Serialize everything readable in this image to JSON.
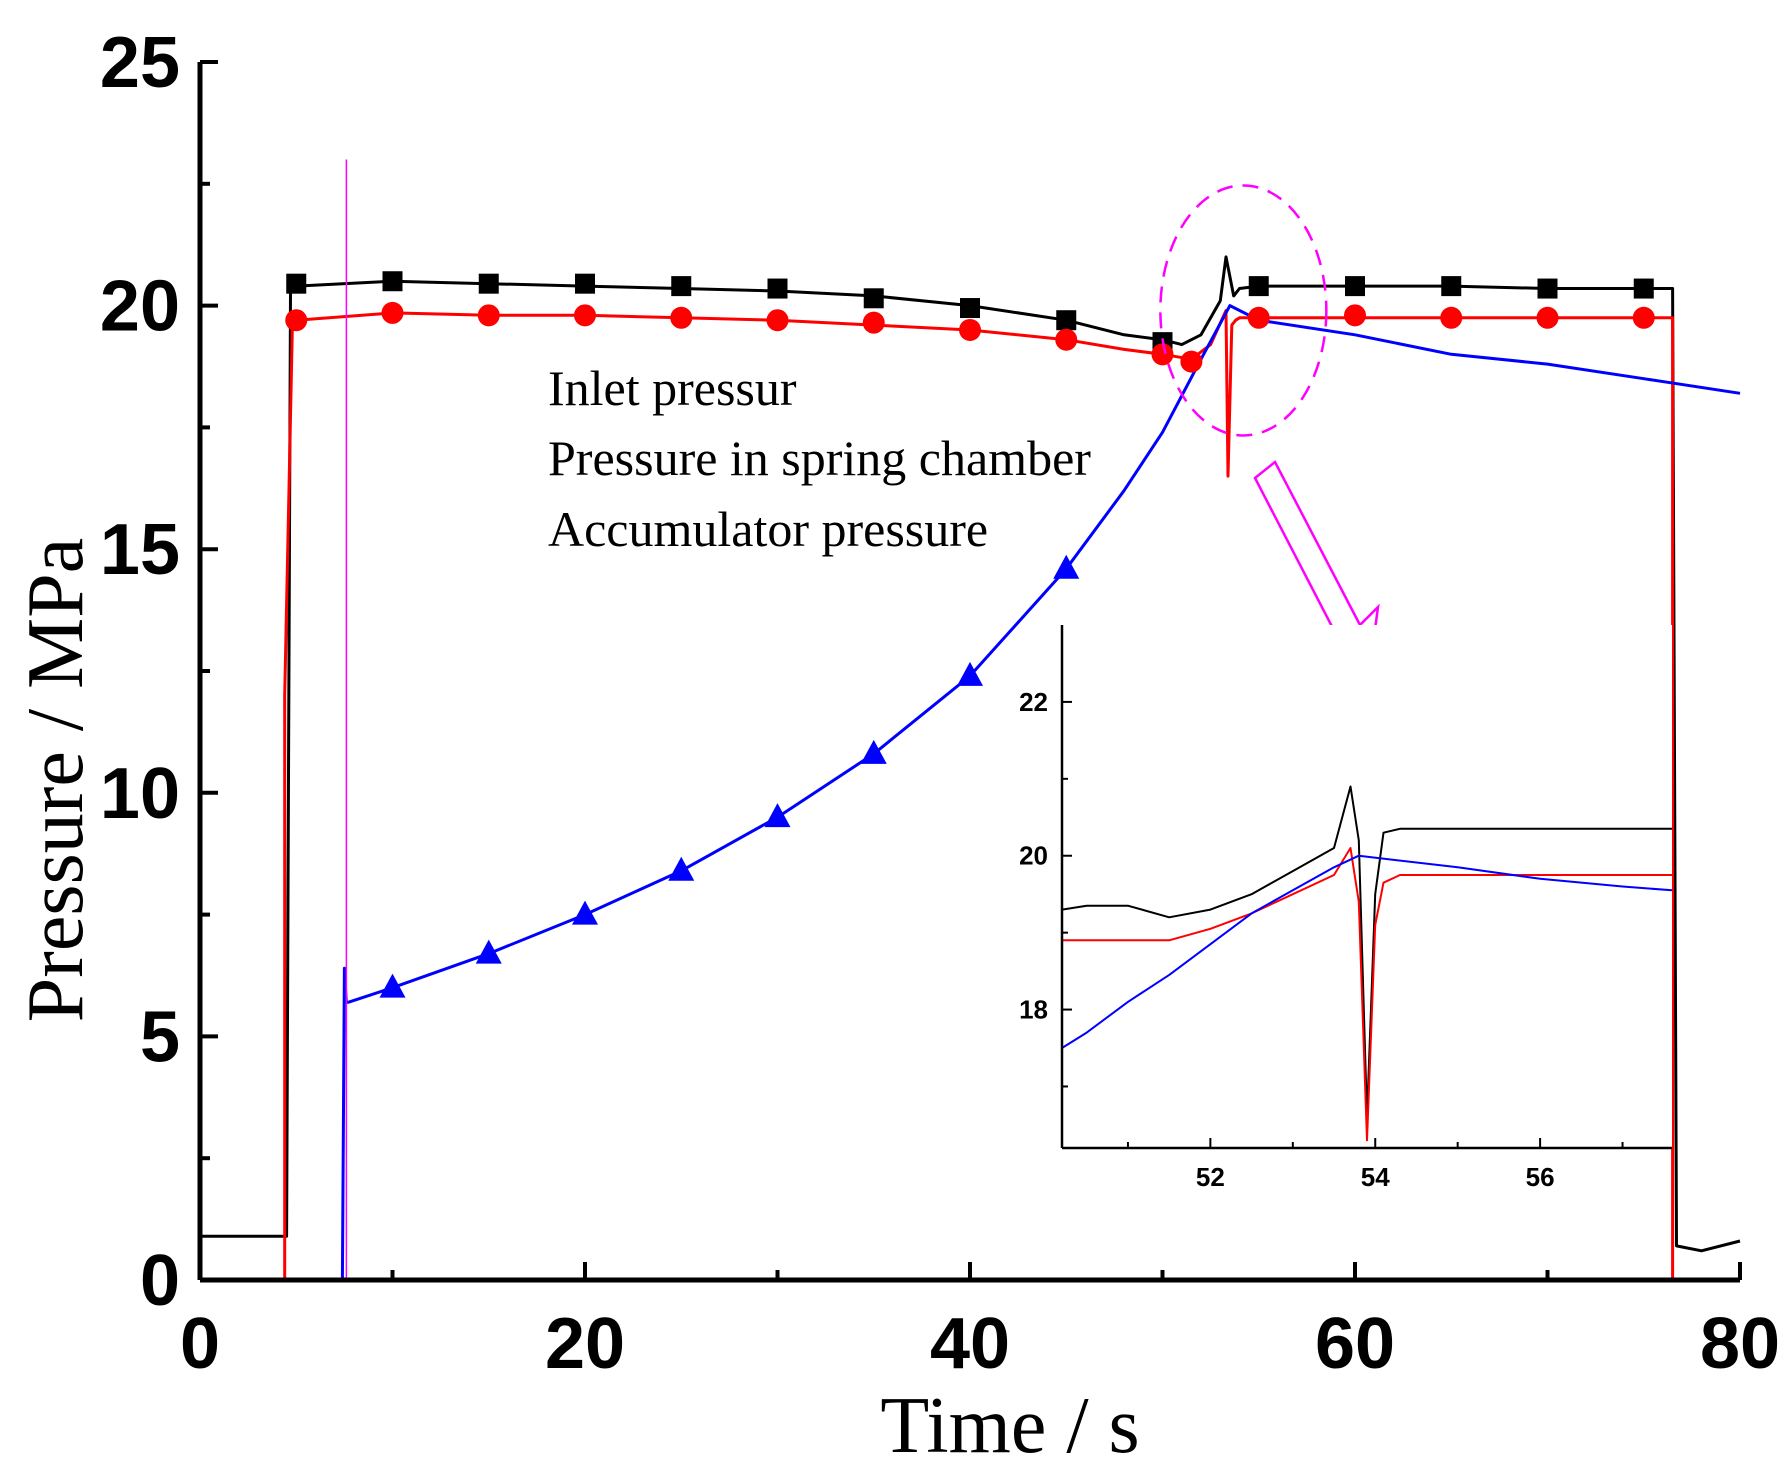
{
  "chart_data": [
    {
      "type": "line",
      "id": "main",
      "title": "",
      "xlabel": "Time / s",
      "ylabel": "Pressure  / MPa",
      "xlim": [
        0,
        80
      ],
      "ylim": [
        0,
        25
      ],
      "x_ticks": [
        0,
        20,
        40,
        60,
        80
      ],
      "x_tick_labels": [
        "0",
        "20",
        "40",
        "60",
        "80"
      ],
      "y_ticks": [
        0,
        5,
        10,
        15,
        20,
        25
      ],
      "y_tick_labels": [
        "0",
        "5",
        "10",
        "15",
        "20",
        "25"
      ],
      "legend_position": "center",
      "series": [
        {
          "name": "Inlet pressur",
          "color": "#000000",
          "marker": "square",
          "x": [
            0,
            4.5,
            4.7,
            5,
            10,
            15,
            20,
            25,
            30,
            35,
            40,
            45,
            48,
            50,
            51,
            52,
            53,
            53.3,
            53.7,
            54,
            55,
            60,
            65,
            70,
            75,
            76.5,
            76.7,
            78,
            80
          ],
          "y": [
            0.9,
            0.9,
            20.3,
            20.4,
            20.5,
            20.45,
            20.4,
            20.35,
            20.3,
            20.2,
            20.0,
            19.7,
            19.4,
            19.3,
            19.2,
            19.4,
            20.1,
            21.0,
            20.2,
            20.35,
            20.4,
            20.4,
            20.4,
            20.35,
            20.35,
            20.35,
            0.7,
            0.6,
            0.8
          ],
          "marker_x": [
            5,
            10,
            15,
            20,
            25,
            30,
            35,
            40,
            45,
            50,
            55,
            60,
            65,
            70,
            75
          ],
          "marker_y": [
            20.45,
            20.5,
            20.45,
            20.45,
            20.4,
            20.35,
            20.15,
            19.95,
            19.7,
            19.25,
            20.4,
            20.4,
            20.4,
            20.35,
            20.35
          ]
        },
        {
          "name": "Pressure in spring chamber",
          "color": "#ff0000",
          "marker": "circle",
          "x": [
            4.4,
            4.4,
            4.8,
            5,
            10,
            15,
            20,
            25,
            30,
            35,
            40,
            45,
            48,
            50,
            51.5,
            52.5,
            53.3,
            53.4,
            53.6,
            53.8,
            54,
            55,
            60,
            65,
            70,
            75,
            76.5,
            76.5,
            80
          ],
          "y": [
            0,
            12.0,
            19.6,
            19.7,
            19.85,
            19.8,
            19.8,
            19.75,
            19.7,
            19.6,
            19.5,
            19.3,
            19.1,
            19.0,
            18.9,
            19.2,
            19.9,
            16.5,
            19.6,
            19.7,
            19.75,
            19.75,
            19.75,
            19.75,
            19.75,
            19.75,
            19.75,
            0,
            0
          ],
          "marker_x": [
            5,
            10,
            15,
            20,
            25,
            30,
            35,
            40,
            45,
            50,
            51.5,
            55,
            60,
            65,
            70,
            75
          ],
          "marker_y": [
            19.7,
            19.85,
            19.8,
            19.8,
            19.75,
            19.7,
            19.65,
            19.5,
            19.3,
            19.0,
            18.85,
            19.75,
            19.8,
            19.75,
            19.75,
            19.75
          ]
        },
        {
          "name": "Accumulator pressure",
          "color": "#0000ff",
          "marker": "triangle",
          "x": [
            7.4,
            7.5,
            7.6,
            7.7,
            10,
            15,
            20,
            25,
            30,
            35,
            40,
            45,
            48,
            50,
            52,
            53.5,
            55,
            60,
            65,
            70,
            75,
            80
          ],
          "y": [
            0,
            6.4,
            5.7,
            5.7,
            6.0,
            6.7,
            7.5,
            8.4,
            9.5,
            10.8,
            12.4,
            14.6,
            16.2,
            17.4,
            18.9,
            20.0,
            19.7,
            19.4,
            19.0,
            18.8,
            18.5,
            18.2
          ],
          "marker_x": [
            10,
            15,
            20,
            25,
            30,
            35,
            40,
            45
          ],
          "marker_y": [
            6.0,
            6.7,
            7.5,
            8.4,
            9.5,
            10.8,
            12.4,
            14.6
          ]
        }
      ],
      "annotations": {
        "vertical_marker_x": 7.5,
        "vertical_marker_top": 23,
        "vertical_marker_color": "#ff00ff",
        "highlight_ellipse_color": "#ff00ff"
      }
    },
    {
      "type": "line",
      "id": "inset",
      "title": "",
      "xlabel": "",
      "ylabel": "",
      "xlim": [
        50.2,
        57.6
      ],
      "ylim": [
        16.2,
        23.0
      ],
      "x_ticks": [
        52,
        54,
        56
      ],
      "x_tick_labels": [
        "52",
        "54",
        "56"
      ],
      "y_ticks": [
        18,
        20,
        22
      ],
      "y_tick_labels": [
        "18",
        "20",
        "22"
      ],
      "series": [
        {
          "name": "Inlet pressur",
          "color": "#000000",
          "x": [
            50.2,
            50.5,
            51.0,
            51.5,
            52.0,
            52.5,
            53.0,
            53.5,
            53.7,
            53.8,
            53.9,
            54.0,
            54.1,
            54.3,
            55,
            56,
            57,
            57.6
          ],
          "y": [
            19.3,
            19.35,
            19.35,
            19.2,
            19.3,
            19.5,
            19.8,
            20.1,
            20.9,
            20.2,
            16.6,
            19.5,
            20.3,
            20.35,
            20.35,
            20.35,
            20.35,
            20.35
          ]
        },
        {
          "name": "Pressure in spring chamber",
          "color": "#ff0000",
          "x": [
            50.2,
            50.5,
            51.0,
            51.5,
            52.0,
            52.5,
            53.0,
            53.5,
            53.7,
            53.8,
            53.9,
            54.0,
            54.1,
            54.3,
            55,
            56,
            57,
            57.6
          ],
          "y": [
            18.9,
            18.9,
            18.9,
            18.9,
            19.05,
            19.25,
            19.5,
            19.75,
            20.1,
            19.4,
            16.3,
            19.1,
            19.65,
            19.75,
            19.75,
            19.75,
            19.75,
            19.75
          ]
        },
        {
          "name": "Accumulator pressure",
          "color": "#0000ff",
          "x": [
            50.2,
            50.5,
            51.0,
            51.5,
            52.0,
            52.5,
            53.0,
            53.5,
            53.8,
            54.2,
            55,
            56,
            57,
            57.6
          ],
          "y": [
            17.5,
            17.7,
            18.1,
            18.45,
            18.85,
            19.25,
            19.55,
            19.85,
            20.0,
            19.95,
            19.85,
            19.7,
            19.6,
            19.55
          ]
        }
      ]
    }
  ]
}
